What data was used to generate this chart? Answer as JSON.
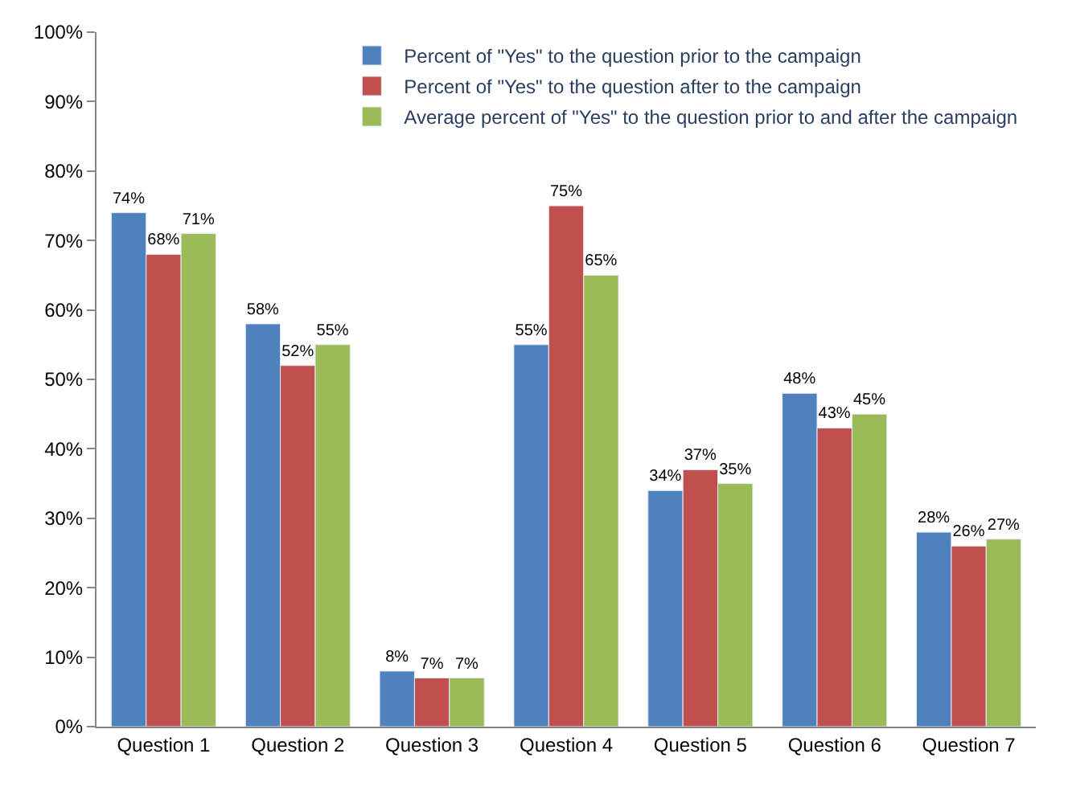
{
  "chart_data": {
    "type": "bar",
    "categories": [
      "Question 1",
      "Question 2",
      "Question 3",
      "Question 4",
      "Question 5",
      "Question 6",
      "Question 7"
    ],
    "series": [
      {
        "name": "Percent of \"Yes\" to the question prior to the campaign",
        "color": "#4f81bd",
        "values": [
          74,
          58,
          8,
          55,
          34,
          48,
          28
        ],
        "value_labels": [
          "74%",
          "58%",
          "8%",
          "55%",
          "34%",
          "48%",
          "28%"
        ]
      },
      {
        "name": "Percent of \"Yes\" to the question after to the campaign",
        "color": "#c0504d",
        "values": [
          68,
          52,
          7,
          75,
          37,
          43,
          26
        ],
        "value_labels": [
          "68%",
          "52%",
          "7%",
          "75%",
          "37%",
          "43%",
          "26%"
        ]
      },
      {
        "name": "Average percent of \"Yes\" to the question prior to and after the campaign",
        "color": "#9bbb59",
        "values": [
          71,
          55,
          7,
          65,
          35,
          45,
          27
        ],
        "value_labels": [
          "71%",
          "55%",
          "7%",
          "65%",
          "35%",
          "45%",
          "27%"
        ]
      }
    ],
    "ylim": [
      0,
      100
    ],
    "yticks": [
      {
        "value": 0,
        "label": "0%"
      },
      {
        "value": 10,
        "label": "10%"
      },
      {
        "value": 20,
        "label": "20%"
      },
      {
        "value": 30,
        "label": "30%"
      },
      {
        "value": 40,
        "label": "40%"
      },
      {
        "value": 50,
        "label": "50%"
      },
      {
        "value": 60,
        "label": "60%"
      },
      {
        "value": 70,
        "label": "70%"
      },
      {
        "value": 80,
        "label": "80%"
      },
      {
        "value": 90,
        "label": "90%"
      },
      {
        "value": 100,
        "label": "100%"
      }
    ],
    "grid": false,
    "legend": "top right"
  }
}
